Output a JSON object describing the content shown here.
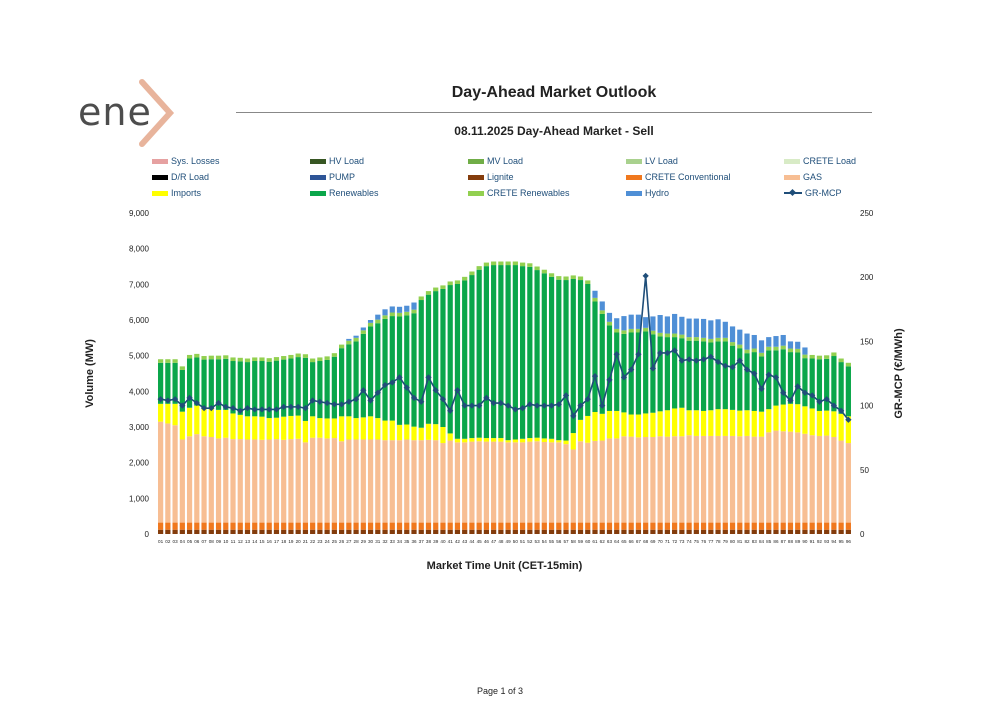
{
  "logo": {
    "text": "ene"
  },
  "main_title": "Day-Ahead Market Outlook",
  "sub_title": "08.11.2025  Day-Ahead Market - Sell",
  "footer": "Page 1 of 3",
  "legend": [
    {
      "label": "Sys. Losses",
      "color": "#e6a1a1"
    },
    {
      "label": "HV Load",
      "color": "#375623"
    },
    {
      "label": "MV Load",
      "color": "#70ad47"
    },
    {
      "label": "LV Load",
      "color": "#a9d18e"
    },
    {
      "label": "CRETE Load",
      "color": "#d8ebc6"
    },
    {
      "label": "D/R Load",
      "color": "#000000"
    },
    {
      "label": "PUMP",
      "color": "#2e5597"
    },
    {
      "label": "Lignite",
      "color": "#843c0c"
    },
    {
      "label": "CRETE Conventional",
      "color": "#f0781e"
    },
    {
      "label": "GAS",
      "color": "#f7be93"
    },
    {
      "label": "Imports",
      "color": "#ffff00"
    },
    {
      "label": "Renewables",
      "color": "#0aa64a"
    },
    {
      "label": "CRETE Renewables",
      "color": "#92d050"
    },
    {
      "label": "Hydro",
      "color": "#4f8fd6"
    },
    {
      "label": "GR-MCP",
      "color": "#1f4e79"
    }
  ],
  "chart_data": {
    "type": "bar",
    "stacked": true,
    "xlabel": "Market Time Unit (CET-15min)",
    "ylabel": "Volume (MW)",
    "y2label": "GR-MCP (€/MWh)",
    "ylim": [
      0,
      9000
    ],
    "y2lim": [
      0,
      250
    ],
    "yticks": [
      "0",
      "1,000",
      "2,000",
      "3,000",
      "4,000",
      "5,000",
      "6,000",
      "7,000",
      "8,000",
      "9,000"
    ],
    "y2ticks": [
      "0",
      "50",
      "100",
      "150",
      "200",
      "250"
    ],
    "categories": [
      "01",
      "02",
      "03",
      "04",
      "05",
      "06",
      "07",
      "08",
      "09",
      "10",
      "11",
      "12",
      "13",
      "14",
      "15",
      "16",
      "17",
      "18",
      "19",
      "20",
      "21",
      "22",
      "23",
      "24",
      "25",
      "26",
      "27",
      "28",
      "29",
      "30",
      "31",
      "32",
      "33",
      "34",
      "35",
      "36",
      "37",
      "38",
      "39",
      "40",
      "41",
      "42",
      "43",
      "44",
      "45",
      "46",
      "47",
      "48",
      "49",
      "50",
      "51",
      "52",
      "53",
      "54",
      "55",
      "56",
      "57",
      "58",
      "59",
      "60",
      "61",
      "62",
      "63",
      "64",
      "65",
      "66",
      "67",
      "68",
      "69",
      "70",
      "71",
      "72",
      "73",
      "74",
      "75",
      "76",
      "77",
      "78",
      "79",
      "80",
      "81",
      "82",
      "83",
      "84",
      "85",
      "86",
      "87",
      "88",
      "89",
      "90",
      "91",
      "92",
      "93",
      "94",
      "95",
      "96"
    ],
    "series": [
      {
        "name": "Lignite",
        "values": [
          120,
          120,
          120,
          120,
          120,
          120,
          120,
          120,
          120,
          120,
          120,
          120,
          120,
          120,
          120,
          120,
          120,
          120,
          120,
          120,
          120,
          120,
          120,
          120,
          120,
          120,
          120,
          120,
          120,
          120,
          120,
          120,
          120,
          120,
          120,
          120,
          120,
          120,
          120,
          120,
          120,
          120,
          120,
          120,
          120,
          120,
          120,
          120,
          120,
          120,
          120,
          120,
          120,
          120,
          120,
          120,
          120,
          120,
          120,
          120,
          120,
          120,
          120,
          120,
          120,
          120,
          120,
          120,
          120,
          120,
          120,
          120,
          120,
          120,
          120,
          120,
          120,
          120,
          120,
          120,
          120,
          120,
          120,
          120,
          120,
          120,
          120,
          120,
          120,
          120,
          120,
          120,
          120,
          120,
          120,
          120
        ]
      },
      {
        "name": "CRETE Conventional",
        "values": [
          200,
          200,
          200,
          200,
          200,
          200,
          200,
          200,
          200,
          200,
          200,
          200,
          200,
          200,
          200,
          200,
          200,
          200,
          200,
          200,
          200,
          200,
          200,
          200,
          200,
          200,
          200,
          200,
          200,
          200,
          200,
          200,
          200,
          200,
          200,
          200,
          200,
          200,
          200,
          200,
          200,
          200,
          200,
          200,
          200,
          200,
          200,
          200,
          200,
          200,
          200,
          200,
          200,
          200,
          200,
          200,
          200,
          200,
          200,
          200,
          200,
          200,
          200,
          200,
          200,
          200,
          200,
          200,
          200,
          200,
          200,
          200,
          200,
          200,
          200,
          200,
          200,
          200,
          200,
          200,
          200,
          200,
          200,
          200,
          200,
          200,
          200,
          200,
          200,
          200,
          200,
          200,
          200,
          200,
          200,
          200
        ]
      },
      {
        "name": "GAS",
        "values": [
          2830,
          2780,
          2730,
          2330,
          2420,
          2480,
          2420,
          2400,
          2360,
          2380,
          2340,
          2340,
          2330,
          2330,
          2320,
          2330,
          2340,
          2320,
          2340,
          2350,
          2250,
          2380,
          2380,
          2360,
          2370,
          2280,
          2330,
          2330,
          2330,
          2330,
          2330,
          2310,
          2310,
          2310,
          2330,
          2310,
          2310,
          2320,
          2310,
          2230,
          2300,
          2250,
          2250,
          2270,
          2280,
          2270,
          2270,
          2270,
          2250,
          2250,
          2250,
          2270,
          2280,
          2260,
          2250,
          2250,
          2200,
          2050,
          2280,
          2240,
          2290,
          2300,
          2360,
          2360,
          2420,
          2410,
          2390,
          2400,
          2400,
          2420,
          2410,
          2420,
          2420,
          2450,
          2430,
          2430,
          2430,
          2430,
          2430,
          2430,
          2420,
          2430,
          2410,
          2410,
          2530,
          2580,
          2560,
          2550,
          2530,
          2490,
          2450,
          2430,
          2440,
          2400,
          2300,
          2230
        ]
      },
      {
        "name": "Imports",
        "values": [
          500,
          550,
          600,
          780,
          800,
          800,
          800,
          800,
          800,
          780,
          720,
          680,
          650,
          650,
          650,
          600,
          600,
          650,
          650,
          650,
          600,
          600,
          550,
          560,
          550,
          700,
          650,
          600,
          620,
          650,
          600,
          550,
          550,
          430,
          420,
          380,
          350,
          450,
          450,
          450,
          200,
          100,
          100,
          100,
          100,
          100,
          100,
          100,
          60,
          80,
          100,
          100,
          100,
          100,
          100,
          60,
          100,
          460,
          600,
          750,
          810,
          750,
          770,
          770,
          670,
          620,
          640,
          660,
          680,
          700,
          740,
          780,
          800,
          700,
          720,
          700,
          720,
          750,
          750,
          730,
          720,
          720,
          720,
          700,
          650,
          700,
          750,
          780,
          790,
          770,
          750,
          700,
          700,
          720,
          750,
          750
        ]
      },
      {
        "name": "Renewables",
        "values": [
          1150,
          1150,
          1150,
          1170,
          1380,
          1350,
          1350,
          1380,
          1420,
          1430,
          1470,
          1500,
          1520,
          1550,
          1560,
          1580,
          1600,
          1600,
          1610,
          1640,
          1770,
          1520,
          1600,
          1640,
          1730,
          1910,
          2020,
          2150,
          2340,
          2520,
          2660,
          2850,
          2930,
          3040,
          3060,
          3180,
          3580,
          3620,
          3730,
          3870,
          4160,
          4340,
          4440,
          4570,
          4710,
          4820,
          4850,
          4850,
          4910,
          4890,
          4840,
          4800,
          4700,
          4630,
          4540,
          4500,
          4500,
          4320,
          3920,
          3700,
          3100,
          2800,
          2400,
          2200,
          2200,
          2300,
          2300,
          2300,
          2200,
          2100,
          2050,
          2000,
          1950,
          1950,
          1950,
          1950,
          1900,
          1900,
          1900,
          1800,
          1750,
          1600,
          1650,
          1550,
          1650,
          1550,
          1550,
          1450,
          1450,
          1350,
          1400,
          1450,
          1450,
          1550,
          1450,
          1400
        ]
      },
      {
        "name": "CRETE Renewables",
        "values": [
          100,
          100,
          100,
          100,
          100,
          100,
          100,
          100,
          100,
          100,
          100,
          100,
          100,
          100,
          100,
          100,
          100,
          100,
          100,
          100,
          100,
          100,
          100,
          100,
          100,
          100,
          100,
          100,
          100,
          100,
          100,
          100,
          100,
          100,
          100,
          100,
          100,
          100,
          100,
          100,
          100,
          100,
          100,
          100,
          100,
          100,
          100,
          100,
          100,
          100,
          100,
          100,
          100,
          100,
          100,
          100,
          100,
          100,
          100,
          100,
          100,
          100,
          100,
          100,
          100,
          100,
          100,
          100,
          100,
          100,
          100,
          100,
          100,
          100,
          100,
          100,
          100,
          100,
          100,
          100,
          100,
          100,
          100,
          100,
          100,
          100,
          100,
          100,
          100,
          100,
          100,
          100,
          100,
          100,
          100,
          100
        ]
      },
      {
        "name": "Hydro",
        "values": [
          0,
          0,
          0,
          0,
          0,
          0,
          0,
          0,
          0,
          0,
          0,
          0,
          0,
          0,
          0,
          0,
          0,
          0,
          0,
          0,
          0,
          0,
          0,
          0,
          0,
          0,
          50,
          60,
          80,
          80,
          140,
          170,
          170,
          170,
          170,
          200,
          0,
          0,
          0,
          0,
          0,
          0,
          0,
          0,
          0,
          0,
          0,
          0,
          0,
          0,
          0,
          0,
          0,
          0,
          0,
          0,
          0,
          0,
          0,
          0,
          200,
          250,
          250,
          300,
          400,
          400,
          400,
          300,
          400,
          500,
          480,
          550,
          500,
          520,
          520,
          530,
          520,
          520,
          450,
          440,
          420,
          450,
          380,
          350,
          270,
          300,
          300,
          200,
          200,
          200,
          0,
          0,
          0,
          0,
          0,
          0
        ]
      }
    ],
    "mcp": {
      "name": "GR-MCP",
      "values": [
        105,
        104,
        105,
        100,
        106,
        102,
        98,
        98,
        102,
        99,
        98,
        96,
        98,
        97,
        97,
        97,
        97,
        99,
        99,
        99,
        98,
        104,
        103,
        102,
        101,
        101,
        103,
        105,
        112,
        104,
        110,
        116,
        118,
        122,
        114,
        106,
        103,
        122,
        112,
        105,
        96,
        112,
        100,
        100,
        100,
        106,
        102,
        102,
        100,
        97,
        98,
        101,
        100,
        100,
        100,
        101,
        108,
        92,
        100,
        105,
        123,
        100,
        120,
        140,
        122,
        128,
        140,
        201,
        129,
        141,
        141,
        143,
        135,
        136,
        135,
        136,
        138,
        134,
        131,
        130,
        135,
        128,
        125,
        113,
        124,
        122,
        110,
        104,
        115,
        110,
        108,
        103,
        105,
        100,
        96,
        89
      ]
    }
  }
}
